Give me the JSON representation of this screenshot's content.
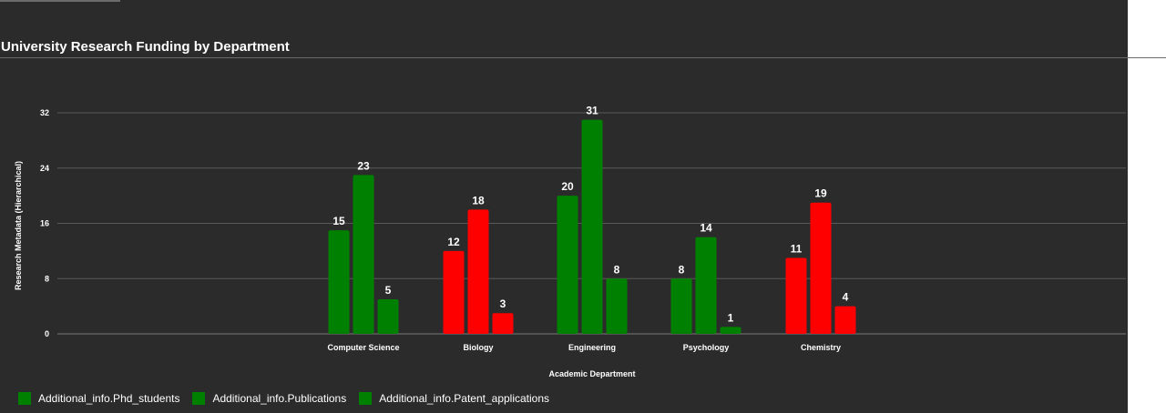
{
  "chart_data": {
    "type": "bar",
    "title": "University Research Funding by Department",
    "xlabel": "Academic Department",
    "ylabel": "Research Metadata (Hierarchical)",
    "categories": [
      "Computer Science",
      "Biology",
      "Engineering",
      "Psychology",
      "Chemistry"
    ],
    "series": [
      {
        "name": "Additional_info.Phd_students",
        "values": [
          15,
          12,
          20,
          8,
          11
        ]
      },
      {
        "name": "Additional_info.Publications",
        "values": [
          23,
          18,
          31,
          14,
          19
        ]
      },
      {
        "name": "Additional_info.Patent_applications",
        "values": [
          5,
          3,
          8,
          1,
          4
        ]
      }
    ],
    "category_colors": [
      "#008000",
      "#ff0000",
      "#008000",
      "#008000",
      "#ff0000"
    ],
    "legend_colors": [
      "#008000",
      "#008000",
      "#008000"
    ],
    "ylim": [
      0,
      32
    ],
    "yticks": [
      0,
      8,
      16,
      24,
      32
    ],
    "grid": true,
    "legend_position": "bottom-left"
  },
  "colors": {
    "background": "#2b2b2b",
    "grid": "#5a5a5a",
    "text": "#ffffff"
  }
}
